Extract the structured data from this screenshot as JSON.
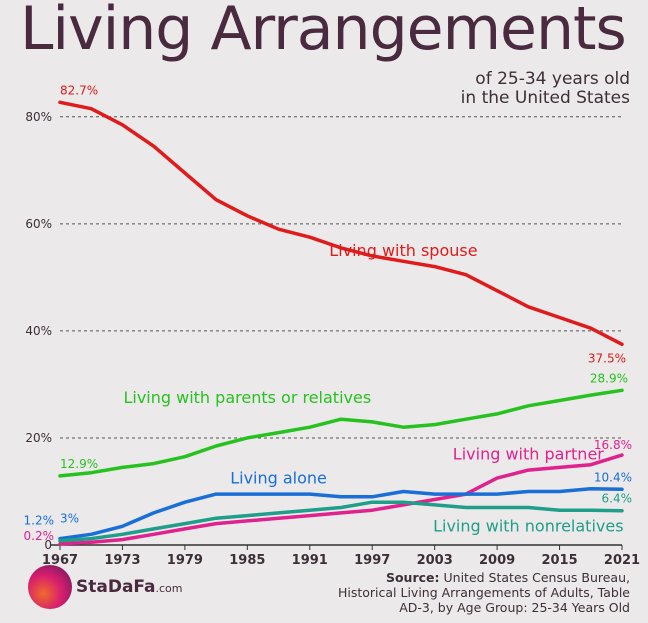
{
  "header": {
    "title": "Living Arrangements",
    "subtitle_line1": "of 25-34 years old",
    "subtitle_line2": "in the United States"
  },
  "logo": {
    "name": "StaDaFa",
    "suffix": ".com"
  },
  "source": {
    "label": "Source:",
    "text": "United States Census Bureau, Historical Living Arrangements of Adults, Table AD-3, by Age Group: 25-34 Years Old"
  },
  "colors": {
    "spouse": "#e01b1b",
    "parents": "#27c21f",
    "partner": "#e0228e",
    "alone": "#1a6fd6",
    "nonrelatives": "#1f9e8a",
    "title": "#4a2a3e",
    "grid": "#555555"
  },
  "chart_data": {
    "type": "line",
    "title": "",
    "xlabel": "",
    "ylabel": "",
    "xlim": [
      1967,
      2021
    ],
    "ylim": [
      0,
      85
    ],
    "x_ticks": [
      "1967",
      "1973",
      "1979",
      "1985",
      "1991",
      "1997",
      "2003",
      "2009",
      "2015",
      "2021"
    ],
    "y_ticks": [
      {
        "value": 0,
        "label": "0"
      },
      {
        "value": 20,
        "label": "20%"
      },
      {
        "value": 40,
        "label": "40%"
      },
      {
        "value": 60,
        "label": "60%"
      },
      {
        "value": 80,
        "label": "80%"
      }
    ],
    "x": [
      1967,
      1970,
      1973,
      1976,
      1979,
      1982,
      1985,
      1988,
      1991,
      1994,
      1997,
      2000,
      2003,
      2006,
      2009,
      2012,
      2015,
      2018,
      2021
    ],
    "series": [
      {
        "key": "spouse",
        "name": "Living with spouse",
        "values": [
          82.7,
          81.5,
          78.5,
          74.5,
          69.5,
          64.5,
          61.5,
          59.0,
          57.5,
          55.5,
          54.0,
          53.0,
          52.0,
          50.5,
          47.5,
          44.5,
          42.5,
          40.5,
          37.5
        ],
        "start_label": "82.7%",
        "end_label": "37.5%",
        "series_label_pos": [
          2000,
          54
        ]
      },
      {
        "key": "parents",
        "name": "Living with parents or relatives",
        "values": [
          12.9,
          13.5,
          14.5,
          15.2,
          16.5,
          18.5,
          20.0,
          21.0,
          22.0,
          23.5,
          23.0,
          22.0,
          22.5,
          23.5,
          24.5,
          26.0,
          27.0,
          28.0,
          28.9
        ],
        "start_label": "12.9%",
        "end_label": "28.9%",
        "series_label_pos": [
          1985,
          26.5
        ]
      },
      {
        "key": "partner",
        "name": "Living with partner",
        "values": [
          0.2,
          0.5,
          1.0,
          2.0,
          3.0,
          4.0,
          4.5,
          5.0,
          5.5,
          6.0,
          6.5,
          7.5,
          8.5,
          9.5,
          12.5,
          14.0,
          14.5,
          15.0,
          16.8
        ],
        "start_label": "0.2%",
        "end_label": "16.8%",
        "series_label_pos": [
          2012,
          16
        ]
      },
      {
        "key": "alone",
        "name": "Living alone",
        "values": [
          1.2,
          2.0,
          3.5,
          6.0,
          8.0,
          9.5,
          9.5,
          9.5,
          9.5,
          9.0,
          9.0,
          10.0,
          9.5,
          9.5,
          9.5,
          10.0,
          10.0,
          10.5,
          10.4
        ],
        "start_label": "1.2%",
        "end_label": "10.4%",
        "extra_label": "3%",
        "series_label_pos": [
          1988,
          11.5
        ]
      },
      {
        "key": "nonrelatives",
        "name": "Living with nonrelatives",
        "values": [
          0.8,
          1.2,
          2.0,
          3.0,
          4.0,
          5.0,
          5.5,
          6.0,
          6.5,
          7.0,
          8.0,
          8.0,
          7.5,
          7.0,
          7.0,
          7.0,
          6.5,
          6.5,
          6.4
        ],
        "end_label": "6.4%",
        "series_label_pos": [
          2012,
          2.5
        ]
      }
    ],
    "grid": true,
    "legend": "none"
  }
}
